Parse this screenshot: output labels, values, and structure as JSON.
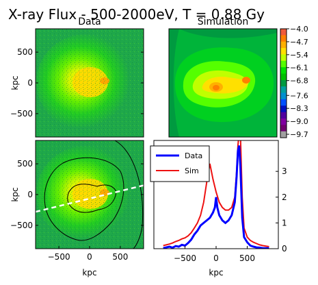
{
  "figure": {
    "title": "X-ray Flux - 500-2000eV, T = 0.88 Gy",
    "colors": {
      "map_background": "#1fa84a",
      "data_line": "#0000ff",
      "sim_line": "#ee1111",
      "projection_line": "#ffffff",
      "contour": "#000000"
    }
  },
  "chart_data": [
    {
      "type": "heatmap",
      "panel": "top-left",
      "title": "Data",
      "xlabel": "",
      "ylabel": "kpc",
      "xlim": [
        -880,
        880
      ],
      "ylim": [
        -880,
        880
      ],
      "yticks": [
        {
          "v": 500,
          "label": "500"
        },
        {
          "v": 0,
          "label": "0"
        },
        {
          "v": -500,
          "label": "−500"
        }
      ],
      "peak_value": -5.4
    },
    {
      "type": "heatmap",
      "panel": "top-right",
      "title": "Simulation",
      "colorbar": {
        "levels": [
          -4.0,
          -4.7,
          -5.4,
          -6.1,
          -6.8,
          -7.6,
          -8.3,
          -9.0,
          -9.7
        ],
        "tick_labels": [
          "−4.0",
          "−4.7",
          "−5.4",
          "−6.1",
          "−6.8",
          "−7.6",
          "−8.3",
          "−9.0",
          "−9.7"
        ],
        "colors": [
          "#ef5a3a",
          "#ff7f00",
          "#ffb000",
          "#ffe000",
          "#c0ff00",
          "#55ff00",
          "#00e000",
          "#00c000",
          "#009a40",
          "#00a0a0",
          "#0090d0",
          "#0050ff",
          "#0010c0",
          "#5000a0",
          "#8000a0",
          "#700070",
          "#a0a0a0"
        ]
      }
    },
    {
      "type": "heatmap",
      "panel": "bottom-left",
      "xlabel": "kpc",
      "ylabel": "kpc",
      "xlim": [
        -880,
        880
      ],
      "ylim": [
        -880,
        880
      ],
      "xticks": [
        {
          "v": -500,
          "label": "−500"
        },
        {
          "v": 0,
          "label": "0"
        },
        {
          "v": 500,
          "label": "500"
        }
      ],
      "yticks": [
        {
          "v": 500,
          "label": "500"
        },
        {
          "v": 0,
          "label": "0"
        },
        {
          "v": -500,
          "label": "−500"
        }
      ],
      "projection_line": {
        "x": [
          -880,
          880
        ],
        "y": [
          -280,
          150
        ]
      }
    },
    {
      "type": "line",
      "panel": "bottom-right",
      "xlabel": "kpc",
      "xlim": [
        -1000,
        1000
      ],
      "ylim": [
        0,
        4.2
      ],
      "xticks": [
        {
          "v": -500,
          "label": "−500"
        },
        {
          "v": 0,
          "label": "0"
        },
        {
          "v": 500,
          "label": "500"
        }
      ],
      "yticks": [
        {
          "v": 0,
          "label": "0"
        },
        {
          "v": 1,
          "label": "1"
        },
        {
          "v": 2,
          "label": "2"
        },
        {
          "v": 3,
          "label": "3"
        }
      ],
      "legend": "upper-left",
      "series": [
        {
          "name": "Data",
          "x": [
            -850,
            -800,
            -750,
            -700,
            -650,
            -600,
            -550,
            -500,
            -450,
            -400,
            -350,
            -300,
            -250,
            -200,
            -150,
            -100,
            -50,
            -20,
            0,
            20,
            50,
            100,
            150,
            200,
            250,
            300,
            330,
            350,
            370,
            390,
            420,
            450,
            500,
            550,
            600,
            650,
            700,
            750,
            800,
            850
          ],
          "y": [
            0.02,
            0.05,
            0.08,
            0.04,
            0.1,
            0.08,
            0.15,
            0.12,
            0.22,
            0.35,
            0.55,
            0.7,
            0.9,
            1.0,
            1.1,
            1.2,
            1.4,
            1.6,
            2.0,
            1.6,
            1.3,
            1.1,
            1.0,
            1.1,
            1.3,
            1.8,
            2.8,
            3.8,
            4.0,
            3.2,
            1.2,
            0.45,
            0.25,
            0.12,
            0.08,
            0.05,
            0.04,
            0.02,
            0.02,
            0.02
          ]
        },
        {
          "name": "Sim",
          "x": [
            -850,
            -800,
            -750,
            -700,
            -650,
            -600,
            -550,
            -500,
            -450,
            -400,
            -350,
            -300,
            -250,
            -200,
            -150,
            -100,
            -50,
            0,
            50,
            100,
            150,
            200,
            250,
            300,
            330,
            350,
            370,
            390,
            420,
            450,
            500,
            550,
            600,
            650,
            700,
            750,
            800,
            850
          ],
          "y": [
            0.12,
            0.15,
            0.18,
            0.22,
            0.28,
            0.32,
            0.38,
            0.42,
            0.5,
            0.62,
            0.8,
            1.0,
            1.3,
            1.8,
            2.6,
            3.3,
            2.7,
            2.2,
            1.8,
            1.6,
            1.5,
            1.5,
            1.6,
            2.0,
            3.0,
            4.0,
            4.5,
            4.5,
            2.0,
            0.8,
            0.45,
            0.32,
            0.25,
            0.2,
            0.15,
            0.12,
            0.1,
            0.08
          ]
        }
      ]
    }
  ]
}
